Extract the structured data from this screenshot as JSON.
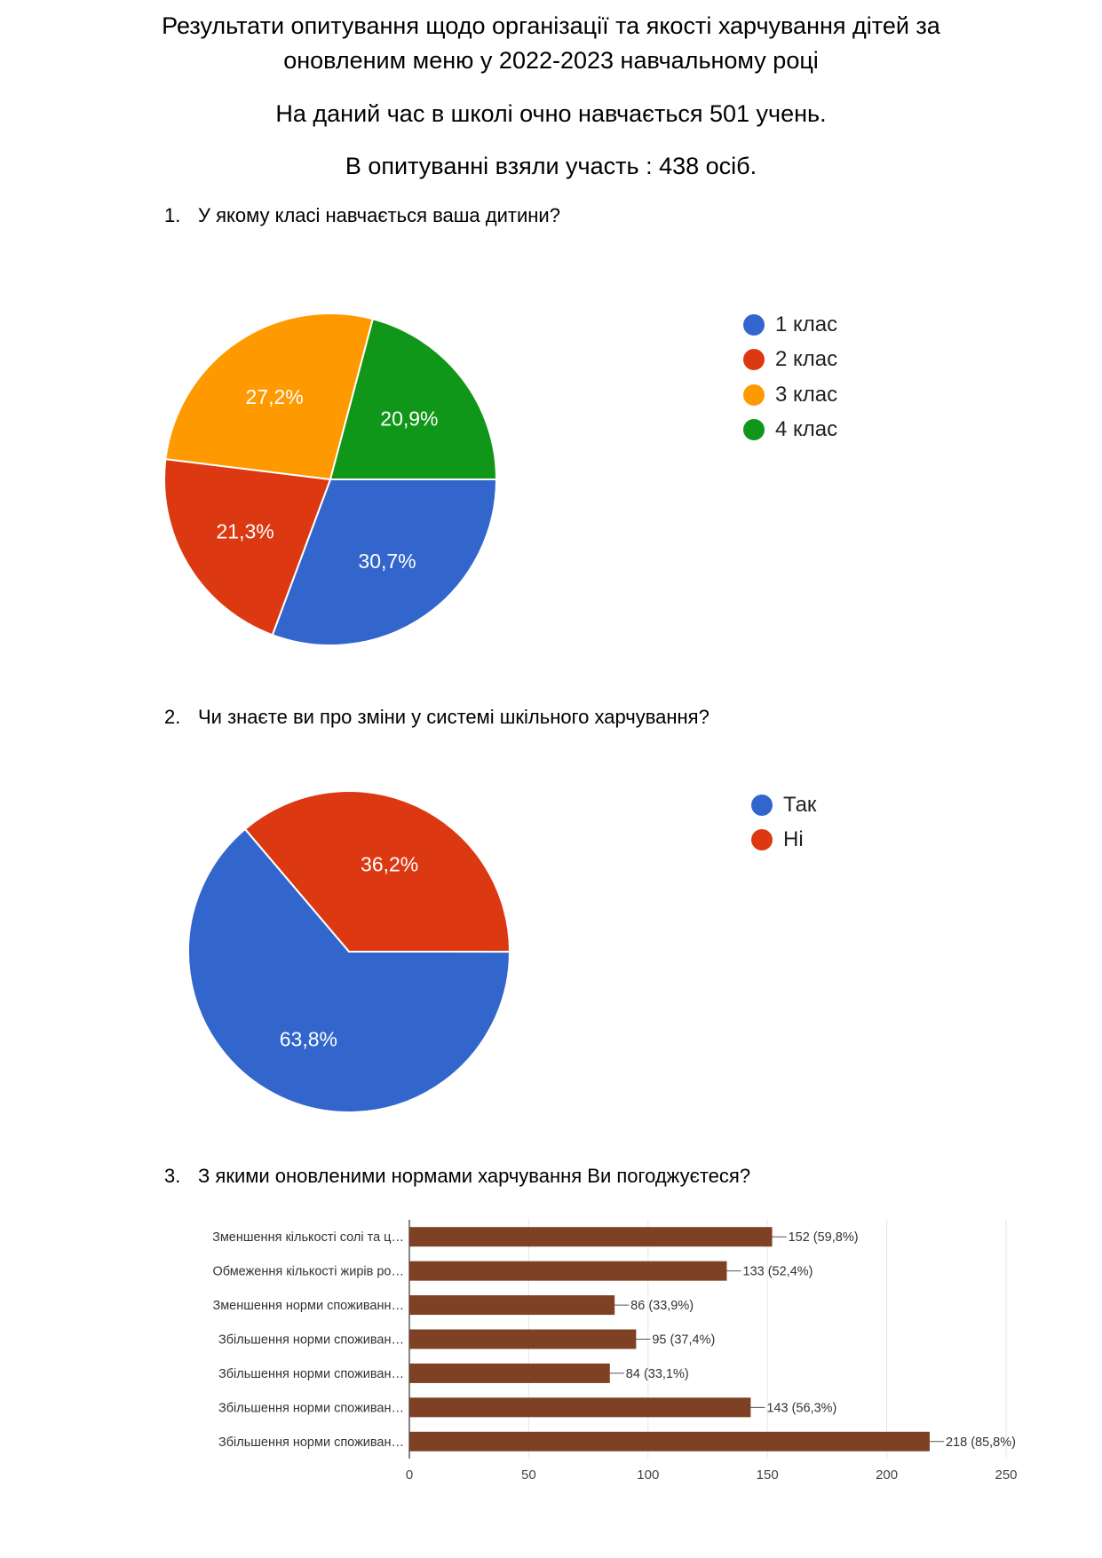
{
  "header": {
    "title_line1": "Результати  опитування щодо організації та якості харчування дітей за",
    "title_line2": "оновленим меню у 2022-2023 навчальному році",
    "enrolled": "На даний час в школі очно навчається 501 учень.",
    "participated": "В опитуванні взяли участь : 438 осіб."
  },
  "questions": [
    {
      "num": "1.",
      "text": "У якому класі навчається ваша дитини?"
    },
    {
      "num": "2.",
      "text": "Чи знаєте ви про зміни у системі шкільного харчування?"
    },
    {
      "num": "3.",
      "text": "З якими оновленими нормами харчування Ви погоджуєтеся?"
    }
  ],
  "chart_data": [
    {
      "type": "pie",
      "slices": [
        {
          "label": "1 клас",
          "value": 30.7,
          "display": "30,7%",
          "color": "#3366cc"
        },
        {
          "label": "2 клас",
          "value": 21.3,
          "display": "21,3%",
          "color": "#dc3912"
        },
        {
          "label": "3 клас",
          "value": 27.2,
          "display": "27,2%",
          "color": "#ff9900"
        },
        {
          "label": "4 клас",
          "value": 20.9,
          "display": "20,9%",
          "color": "#109618"
        }
      ],
      "legend": "right"
    },
    {
      "type": "pie",
      "slices": [
        {
          "label": "Так",
          "value": 63.8,
          "display": "63,8%",
          "color": "#3366cc"
        },
        {
          "label": "Ні",
          "value": 36.2,
          "display": "36,2%",
          "color": "#dc3912"
        }
      ],
      "legend": "right"
    },
    {
      "type": "bar",
      "orientation": "horizontal",
      "color": "#7f4124",
      "categories": [
        "Зменшення кількості солі та ц…",
        "Обмеження кількості жирів ро…",
        "Зменшення норми споживанн…",
        "Збільшення норми споживан…",
        "Збільшення норми споживан…",
        "Збільшення норми споживан…",
        "Збільшення норми споживан…"
      ],
      "values": [
        152,
        133,
        86,
        95,
        84,
        143,
        218
      ],
      "data_labels": [
        "152 (59,8%)",
        "133 (52,4%)",
        "86 (33,9%)",
        "95 (37,4%)",
        "84 (33,1%)",
        "143 (56,3%)",
        "218 (85,8%)"
      ],
      "xlim": [
        0,
        250
      ],
      "xticks": [
        0,
        50,
        100,
        150,
        200,
        250
      ],
      "grid": true
    }
  ]
}
